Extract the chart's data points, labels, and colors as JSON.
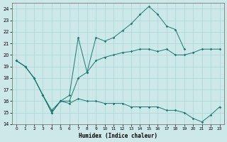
{
  "xlabel": "Humidex (Indice chaleur)",
  "bg_color": "#cce8e8",
  "grid_color": "#aad4d4",
  "line_color": "#1a7a6e",
  "xlim": [
    -0.5,
    23.5
  ],
  "ylim": [
    14,
    24.5
  ],
  "yticks": [
    14,
    15,
    16,
    17,
    18,
    19,
    20,
    21,
    22,
    23,
    24
  ],
  "xticks": [
    0,
    1,
    2,
    3,
    4,
    5,
    6,
    7,
    8,
    9,
    10,
    11,
    12,
    13,
    14,
    15,
    16,
    17,
    18,
    19,
    20,
    21,
    22,
    23
  ],
  "line_peak_x": [
    0,
    1,
    2,
    3,
    4,
    5,
    6,
    7,
    8,
    9,
    10,
    11,
    12,
    13,
    14,
    15,
    16,
    17,
    18,
    19
  ],
  "line_peak_y": [
    19.5,
    19.0,
    18.0,
    16.5,
    15.0,
    16.0,
    16.5,
    21.5,
    18.5,
    21.5,
    21.2,
    21.5,
    22.1,
    22.7,
    23.5,
    24.2,
    23.5,
    22.5,
    22.2,
    20.5
  ],
  "line_upper_x": [
    0,
    1,
    2,
    3,
    4,
    5,
    6,
    7,
    8,
    9,
    10,
    11,
    12,
    13,
    14,
    15,
    16,
    17,
    18,
    19,
    20,
    21,
    22,
    23
  ],
  "line_upper_y": [
    19.5,
    19.0,
    18.0,
    16.5,
    15.2,
    16.0,
    16.0,
    18.0,
    18.5,
    19.5,
    19.8,
    20.0,
    20.2,
    20.3,
    20.5,
    20.5,
    20.3,
    20.5,
    20.0,
    20.0,
    20.2,
    20.5,
    20.5,
    20.5
  ],
  "line_lower_x": [
    0,
    1,
    2,
    3,
    4,
    5,
    6,
    7,
    8,
    9,
    10,
    11,
    12,
    13,
    14,
    15,
    16,
    17,
    18,
    19,
    20,
    21,
    22,
    23
  ],
  "line_lower_y": [
    19.5,
    19.0,
    18.0,
    16.5,
    15.0,
    16.0,
    15.8,
    16.2,
    16.0,
    16.0,
    15.8,
    15.8,
    15.8,
    15.5,
    15.5,
    15.5,
    15.5,
    15.2,
    15.2,
    15.0,
    14.5,
    14.2,
    14.8,
    15.5
  ]
}
